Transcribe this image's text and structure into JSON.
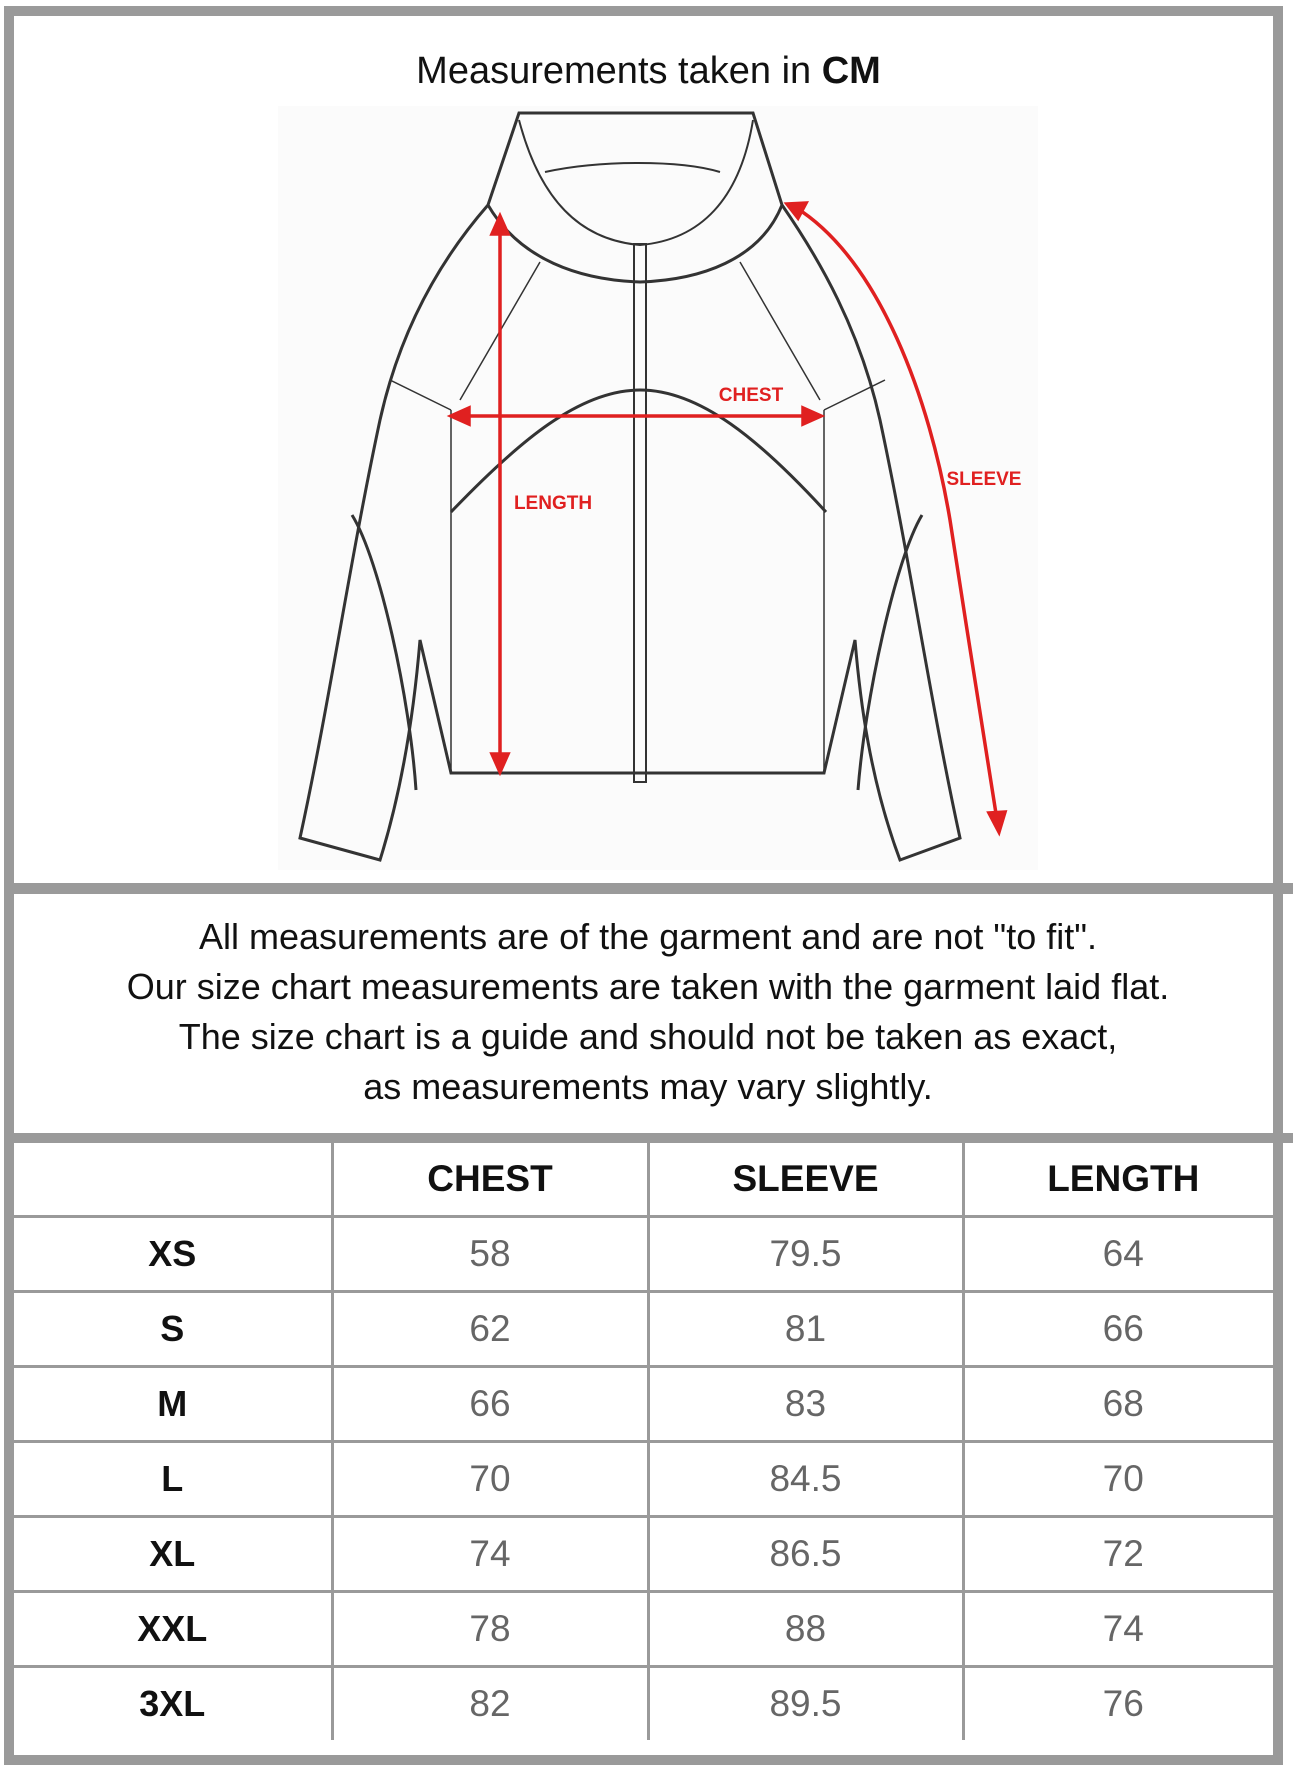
{
  "header": {
    "title_prefix": "Measurements taken in",
    "title_unit": "CM"
  },
  "diagram": {
    "labels": {
      "chest": "CHEST",
      "length": "LENGTH",
      "sleeve": "SLEEVE"
    },
    "colors": {
      "arrow": "#e02020",
      "outline": "#333333"
    }
  },
  "notes": [
    "All measurements are of the garment and are not \"to fit\".",
    "Our size chart measurements are taken with the garment laid flat.",
    "The size chart is a guide and should not be taken as exact,",
    "as measurements may vary slightly."
  ],
  "table": {
    "columns": [
      "",
      "CHEST",
      "SLEEVE",
      "LENGTH"
    ],
    "rows": [
      {
        "size": "XS",
        "chest": "58",
        "sleeve": "79.5",
        "length": "64"
      },
      {
        "size": "S",
        "chest": "62",
        "sleeve": "81",
        "length": "66"
      },
      {
        "size": "M",
        "chest": "66",
        "sleeve": "83",
        "length": "68"
      },
      {
        "size": "L",
        "chest": "70",
        "sleeve": "84.5",
        "length": "70"
      },
      {
        "size": "XL",
        "chest": "74",
        "sleeve": "86.5",
        "length": "72"
      },
      {
        "size": "XXL",
        "chest": "78",
        "sleeve": "88",
        "length": "74"
      },
      {
        "size": "3XL",
        "chest": "82",
        "sleeve": "89.5",
        "length": "76"
      }
    ]
  }
}
